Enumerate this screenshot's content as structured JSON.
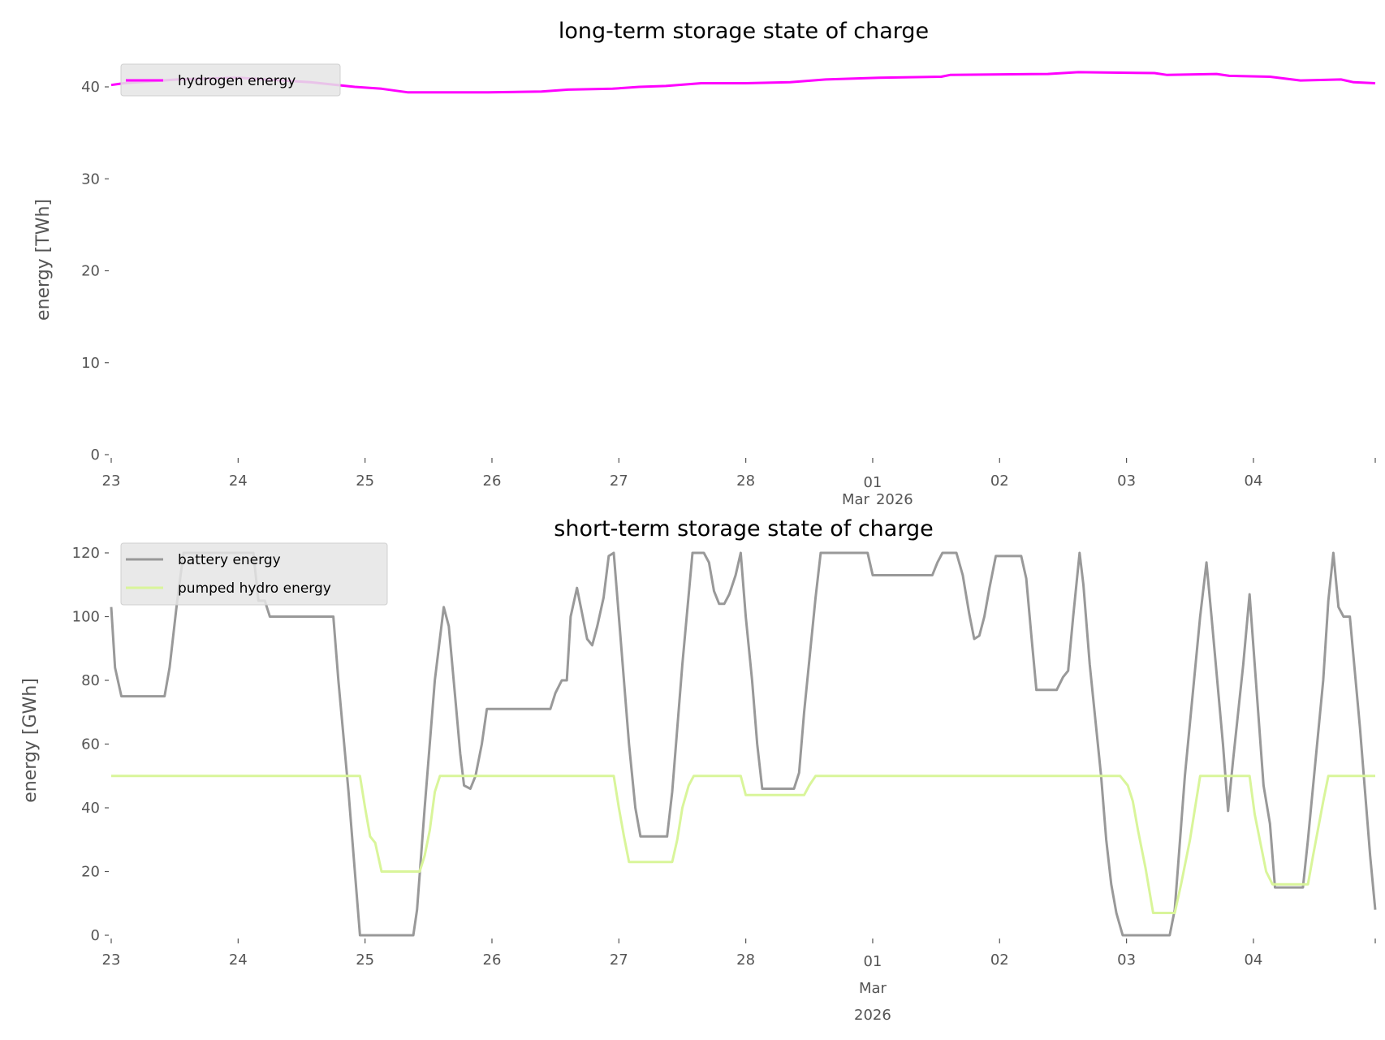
{
  "chart_data": [
    {
      "type": "line",
      "title": "long-term storage state of charge",
      "xlabel": "",
      "ylabel": "energy [TWh]",
      "ylim": [
        0,
        42.5
      ],
      "yticks": [
        "0",
        "10",
        "20",
        "30",
        "40"
      ],
      "x_unit": "days since 23 Feb 2026 00:00",
      "xlim": [
        0,
        9.96
      ],
      "xticks": [
        "23",
        "24",
        "25",
        "26",
        "27",
        "28",
        "01",
        "02",
        "03",
        "04"
      ],
      "xtick_sub": [
        "Mar",
        "2026"
      ],
      "grid": false,
      "legend": "top-left",
      "series": [
        {
          "name": "hydrogen energy",
          "color": "#ff00ff",
          "t": [
            0,
            0.1,
            0.52,
            1.0,
            1.57,
            1.92,
            2.13,
            2.34,
            2.97,
            3.39,
            3.6,
            3.95,
            4.16,
            4.37,
            4.65,
            5.0,
            5.35,
            5.63,
            6.05,
            6.54,
            6.61,
            7.38,
            7.62,
            8.22,
            8.32,
            8.71,
            8.81,
            9.13,
            9.37,
            9.69,
            9.79,
            9.96
          ],
          "values": [
            40.2,
            40.4,
            40.8,
            41.0,
            40.5,
            40.0,
            39.8,
            39.4,
            39.4,
            39.5,
            39.7,
            39.8,
            40.0,
            40.1,
            40.4,
            40.4,
            40.5,
            40.8,
            41.0,
            41.1,
            41.3,
            41.4,
            41.6,
            41.5,
            41.3,
            41.4,
            41.2,
            41.1,
            40.7,
            40.8,
            40.5,
            40.4
          ]
        }
      ]
    },
    {
      "type": "line",
      "title": "short-term storage state of charge",
      "xlabel": "",
      "ylabel": "energy [GWh]",
      "ylim": [
        0,
        124
      ],
      "yticks": [
        "0",
        "20",
        "40",
        "60",
        "80",
        "100",
        "120"
      ],
      "x_unit": "days since 23 Feb 2026 00:00",
      "xlim": [
        0,
        9.96
      ],
      "xticks": [
        "23",
        "24",
        "25",
        "26",
        "27",
        "28",
        "01",
        "02",
        "03",
        "04"
      ],
      "xtick_sub": [
        "Mar",
        "2026"
      ],
      "grid": false,
      "legend": "top-left",
      "series": [
        {
          "name": "battery energy",
          "color": "#999999",
          "t": [
            0,
            0.03,
            0.08,
            0.42,
            0.46,
            0.52,
            0.57,
            1.12,
            1.16,
            1.21,
            1.25,
            1.75,
            1.79,
            1.87,
            1.92,
            1.96,
            2.38,
            2.41,
            2.47,
            2.55,
            2.62,
            2.66,
            2.71,
            2.75,
            2.78,
            2.83,
            2.87,
            2.92,
            2.96,
            3.46,
            3.5,
            3.55,
            3.59,
            3.62,
            3.67,
            3.71,
            3.75,
            3.79,
            3.83,
            3.88,
            3.92,
            3.96,
            4.0,
            4.08,
            4.13,
            4.17,
            4.38,
            4.42,
            4.5,
            4.58,
            4.67,
            4.71,
            4.75,
            4.79,
            4.83,
            4.87,
            4.92,
            4.96,
            5.0,
            5.05,
            5.09,
            5.13,
            5.38,
            5.42,
            5.46,
            5.55,
            5.59,
            5.96,
            6.0,
            6.47,
            6.51,
            6.55,
            6.66,
            6.71,
            6.76,
            6.8,
            6.84,
            6.88,
            6.92,
            6.97,
            7.17,
            7.21,
            7.25,
            7.29,
            7.45,
            7.5,
            7.54,
            7.58,
            7.63,
            7.66,
            7.71,
            7.8,
            7.84,
            7.88,
            7.92,
            7.97,
            8.34,
            8.38,
            8.46,
            8.58,
            8.63,
            8.67,
            8.76,
            8.8,
            8.84,
            8.92,
            8.97,
            9.01,
            9.08,
            9.13,
            9.17,
            9.39,
            9.43,
            9.55,
            9.59,
            9.63,
            9.67,
            9.71,
            9.76,
            9.84,
            9.92,
            9.96
          ],
          "values": [
            103,
            84,
            75,
            75,
            84,
            105,
            120,
            120,
            105,
            105,
            100,
            100,
            80,
            45,
            20,
            0,
            0,
            8,
            40,
            80,
            103,
            97,
            75,
            57,
            47,
            46,
            50,
            60,
            71,
            71,
            76,
            80,
            80,
            100,
            109,
            101,
            93,
            91,
            97,
            106,
            119,
            120,
            100,
            60,
            40,
            31,
            31,
            45,
            85,
            120,
            120,
            117,
            108,
            104,
            104,
            107,
            113,
            120,
            100,
            80,
            60,
            46,
            46,
            51,
            70,
            106,
            120,
            120,
            113,
            113,
            117,
            120,
            120,
            113,
            101,
            93,
            94,
            100,
            109,
            119,
            119,
            112,
            94,
            77,
            77,
            81,
            83,
            100,
            120,
            110,
            85,
            50,
            30,
            16,
            7,
            0,
            0,
            8,
            50,
            100,
            117,
            100,
            60,
            39,
            55,
            85,
            107,
            85,
            47,
            35,
            15,
            15,
            30,
            80,
            105,
            120,
            103,
            100,
            100,
            65,
            25,
            8
          ]
        },
        {
          "name": "pumped hydro energy",
          "color": "#d9f59a",
          "t": [
            0,
            1.96,
            2.0,
            2.04,
            2.08,
            2.13,
            2.43,
            2.47,
            2.51,
            2.55,
            2.59,
            3.96,
            4.0,
            4.04,
            4.08,
            4.42,
            4.46,
            4.5,
            4.55,
            4.59,
            4.96,
            5.0,
            5.46,
            5.5,
            5.55,
            7.95,
            8.01,
            8.05,
            8.09,
            8.15,
            8.21,
            8.38,
            8.43,
            8.5,
            8.58,
            8.97,
            9.01,
            9.06,
            9.1,
            9.15,
            9.43,
            9.47,
            9.55,
            9.59,
            9.96
          ],
          "values": [
            50,
            50,
            40,
            31,
            29,
            20,
            20,
            25,
            33,
            45,
            50,
            50,
            40,
            31,
            23,
            23,
            30,
            40,
            47,
            50,
            50,
            44,
            44,
            47,
            50,
            50,
            47,
            42,
            33,
            21,
            7,
            7,
            16,
            30,
            50,
            50,
            38,
            28,
            20,
            16,
            16,
            25,
            42,
            50,
            50
          ]
        }
      ]
    }
  ]
}
